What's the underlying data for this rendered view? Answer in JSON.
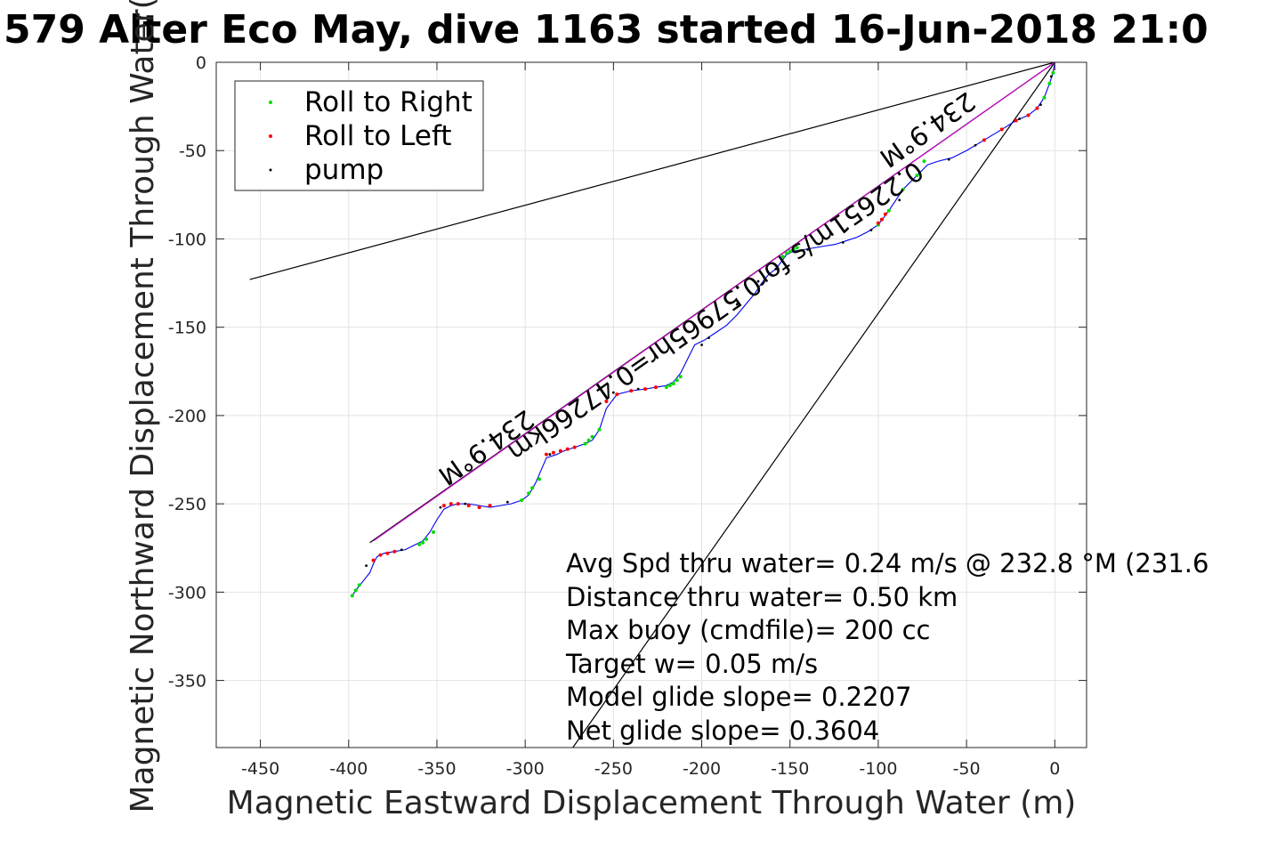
{
  "chart_data": {
    "type": "line",
    "title": "579 Alter Eco May, dive 1163 started 16-Jun-2018 21:0",
    "xlabel": "Magnetic Eastward Displacement Through Water (m)",
    "ylabel": "Magnetic Northward Displacement Through Water(",
    "xlim": [
      -475,
      18
    ],
    "ylim": [
      -388,
      0
    ],
    "xticks": [
      -450,
      -400,
      -350,
      -300,
      -250,
      -200,
      -150,
      -100,
      -50,
      0
    ],
    "yticks": [
      0,
      -50,
      -100,
      -150,
      -200,
      -250,
      -300,
      -350
    ],
    "grid": true,
    "legend": {
      "placement": "top-left",
      "entries": [
        {
          "label": "Roll to Right",
          "color": "#00dd00"
        },
        {
          "label": "Roll to Left",
          "color": "#ff0000"
        },
        {
          "label": "pump",
          "color": "#000000"
        }
      ]
    },
    "track": {
      "color": "#0000ee",
      "x": [
        0,
        -1,
        -3,
        -6,
        -10,
        -15,
        -22,
        -30,
        -40,
        -50,
        -58,
        -66,
        -72,
        -78,
        -86,
        -94,
        -100,
        -106,
        -112,
        -118,
        -124,
        -130,
        -136,
        -142,
        -148,
        -152,
        -155,
        -158,
        -162,
        -166,
        -170,
        -175,
        -180,
        -186,
        -192,
        -198,
        -204,
        -208,
        -212,
        -216,
        -220,
        -226,
        -232,
        -240,
        -248,
        -254,
        -258,
        -262,
        -266,
        -272,
        -278,
        -282,
        -288,
        -294,
        -298,
        -302,
        -308,
        -314,
        -320,
        -326,
        -332,
        -338,
        -342,
        -346,
        -350,
        -354,
        -358,
        -362,
        -368,
        -374,
        -380,
        -384,
        -386,
        -388,
        -392,
        -396,
        -398
      ],
      "y": [
        0,
        -6,
        -12,
        -20,
        -26,
        -30,
        -33,
        -38,
        -44,
        -50,
        -54,
        -56,
        -58,
        -64,
        -72,
        -84,
        -92,
        -96,
        -99,
        -101,
        -103,
        -104,
        -105,
        -106,
        -107,
        -109,
        -113,
        -117,
        -120,
        -125,
        -131,
        -137,
        -143,
        -149,
        -153,
        -157,
        -160,
        -168,
        -176,
        -181,
        -183,
        -184,
        -185,
        -186,
        -188,
        -196,
        -208,
        -214,
        -216,
        -218,
        -220,
        -222,
        -224,
        -238,
        -245,
        -248,
        -250,
        -251,
        -252,
        -251,
        -250,
        -250,
        -251,
        -253,
        -259,
        -266,
        -271,
        -273,
        -276,
        -277,
        -278,
        -280,
        -284,
        -289,
        -294,
        -299,
        -302
      ]
    },
    "roll_right_points": {
      "x": [
        -1,
        -3,
        -6,
        -74,
        -78,
        -86,
        -94,
        -100,
        -154,
        -152,
        -150,
        -148,
        -146,
        -212,
        -214,
        -216,
        -218,
        -220,
        -258,
        -262,
        -264,
        -266,
        -292,
        -296,
        -298,
        -302,
        -352,
        -356,
        -358,
        -360,
        -394,
        -396,
        -398
      ],
      "y": [
        -6,
        -12,
        -20,
        -56,
        -64,
        -72,
        -84,
        -92,
        -110,
        -108,
        -107,
        -106,
        -105,
        -178,
        -180,
        -182,
        -183,
        -184,
        -208,
        -212,
        -214,
        -216,
        -236,
        -241,
        -244,
        -248,
        -266,
        -270,
        -272,
        -273,
        -296,
        -299,
        -302
      ]
    },
    "roll_left_points": {
      "x": [
        -10,
        -15,
        -22,
        -30,
        -40,
        -96,
        -98,
        -100,
        -226,
        -232,
        -240,
        -248,
        -254,
        -272,
        -276,
        -280,
        -284,
        -288,
        -320,
        -326,
        -332,
        -338,
        -342,
        -346,
        -374,
        -378,
        -382,
        -386
      ],
      "y": [
        -26,
        -30,
        -33,
        -38,
        -44,
        -86,
        -89,
        -91,
        -184,
        -185,
        -186,
        -188,
        -192,
        -218,
        -219,
        -220,
        -221,
        -222,
        -251,
        -252,
        -251,
        -250,
        -250,
        -251,
        -277,
        -278,
        -279,
        -282
      ]
    },
    "pump_points": {
      "x": [
        -2,
        -8,
        -20,
        -45,
        -60,
        -88,
        -104,
        -120,
        -140,
        -158,
        -168,
        -180,
        -196,
        -200,
        -236,
        -250,
        -286,
        -310,
        -334,
        -348,
        -370,
        -390
      ],
      "y": [
        -8,
        -24,
        -32,
        -47,
        -55,
        -78,
        -95,
        -102,
        -106,
        -117,
        -124,
        -137,
        -156,
        -160,
        -185,
        -187,
        -222,
        -249,
        -250,
        -252,
        -276,
        -285
      ]
    },
    "reference_lines": [
      {
        "color": "#000000",
        "x": [
          0,
          -456
        ],
        "y": [
          0,
          -123
        ]
      },
      {
        "color": "#000000",
        "x": [
          0,
          -273
        ],
        "y": [
          0,
          -388
        ]
      },
      {
        "color": "#000000",
        "x": [
          0,
          -388
        ],
        "y": [
          0,
          -272
        ]
      },
      {
        "color": "#cc00cc",
        "x": [
          0,
          -386
        ],
        "y": [
          0,
          -271
        ]
      }
    ],
    "annotations": [
      {
        "text": "234.9°M",
        "x": -325,
        "y": -214,
        "angle_deg": 144.9
      },
      {
        "text": "234.9°M",
        "x": -75,
        "y": -34,
        "angle_deg": 144.9
      },
      {
        "text": "0.22651m/s for0.57965hr=0.47266km",
        "x": -195,
        "y": -137,
        "angle_deg": 144.9
      }
    ],
    "stats": [
      "Avg Spd thru water=  0.24 m/s @ 232.8 °M (231.6",
      "Distance thru water=  0.50 km",
      "Max buoy (cmdfile)= 200 cc",
      "Target w= 0.05 m/s",
      "Model glide slope= 0.2207",
      "Net glide slope= 0.3604"
    ]
  }
}
